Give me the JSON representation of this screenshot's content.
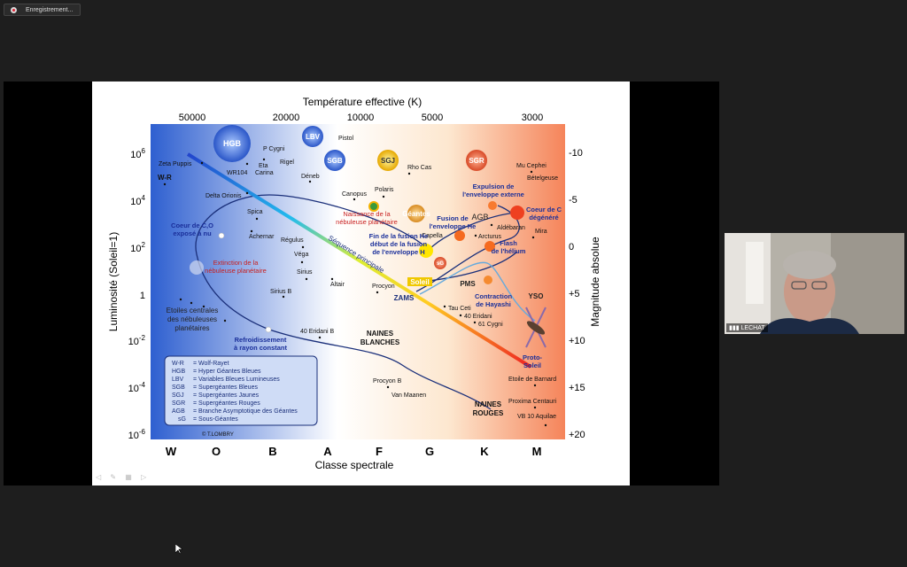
{
  "recording": {
    "label": "Enregistrement..."
  },
  "participant": {
    "name": "LECHAT"
  },
  "chart_data": {
    "type": "scatter",
    "title": "Température effective (K)",
    "top_ticks": [
      "50000",
      "20000",
      "10000",
      "5000",
      "3000"
    ],
    "ylabel": "Luminosité (Soleil=1)",
    "y_ticks": [
      {
        "b": "10",
        "e": "6"
      },
      {
        "b": "10",
        "e": "4"
      },
      {
        "b": "10",
        "e": "2"
      },
      {
        "b": "1",
        "e": ""
      },
      {
        "b": "10",
        "e": "-2"
      },
      {
        "b": "10",
        "e": "-4"
      },
      {
        "b": "10",
        "e": "-6"
      }
    ],
    "ylabel_right": "Magnitude absolue",
    "right_ticks": [
      "-10",
      "-5",
      "0",
      "+5",
      "+10",
      "+15",
      "+20"
    ],
    "xlabel": "Classe spectrale",
    "spectral_classes": [
      "W",
      "O",
      "B",
      "A",
      "F",
      "G",
      "K",
      "M"
    ],
    "main_sequence_label": "Séquence principale",
    "stars": [
      {
        "name": "P Cygni"
      },
      {
        "name": "Pistol"
      },
      {
        "name": "Rigel"
      },
      {
        "name": "Eta"
      },
      {
        "name": "Carina"
      },
      {
        "name": "Zeta Puppis"
      },
      {
        "name": "W-R"
      },
      {
        "name": "WR104"
      },
      {
        "name": "Déneb"
      },
      {
        "name": "Rho Cas"
      },
      {
        "name": "Mu Cephei"
      },
      {
        "name": "Bételgeuse"
      },
      {
        "name": "Delta Orionis"
      },
      {
        "name": "Canopus"
      },
      {
        "name": "Polaris"
      },
      {
        "name": "Spica"
      },
      {
        "name": "Achernar"
      },
      {
        "name": "Régulus"
      },
      {
        "name": "Véga"
      },
      {
        "name": "Sirius"
      },
      {
        "name": "Altair"
      },
      {
        "name": "Procyon"
      },
      {
        "name": "Sirius B"
      },
      {
        "name": "Aldébaran"
      },
      {
        "name": "Arcturus"
      },
      {
        "name": "Mira"
      },
      {
        "name": "Capella"
      },
      {
        "name": "Tau Ceti"
      },
      {
        "name": "40 Eridani"
      },
      {
        "name": "61 Cygni"
      },
      {
        "name": "40 Eridani B"
      },
      {
        "name": "Procyon B"
      },
      {
        "name": "Van Maanen"
      },
      {
        "name": "Etoile de Barnard"
      },
      {
        "name": "Proxima Centauri"
      },
      {
        "name": "VB 10 Aquilae"
      }
    ],
    "bubbles": [
      "HGB",
      "LBV",
      "SGB",
      "SGJ",
      "SGR",
      "Géantes",
      "sG",
      "Soleil",
      "AGB",
      "PMS",
      "YSO",
      "ZAMS"
    ],
    "annotations": {
      "birth_nebula": [
        "Naissance de la",
        "nébuleuse planétaire"
      ],
      "core_co": [
        "Coeur de C,O",
        "exposé à nu"
      ],
      "extinction": [
        "Extinction de la",
        "nébuleuse planétaire"
      ],
      "central_stars": [
        "Etoiles centrales",
        "des nébuleuses",
        "planétaires"
      ],
      "cooling": [
        "Refroidissement",
        "à rayon constant"
      ],
      "white_dwarfs": [
        "NAINES",
        "BLANCHES"
      ],
      "red_dwarfs": [
        "NAINES",
        "ROUGES"
      ],
      "he_fusion": [
        "Fin de la fusion He",
        "début de la fusion",
        "de l'enveloppe H"
      ],
      "fusion_env_he": [
        "Fusion de",
        "l'enveloppe He"
      ],
      "expulsion": [
        "Expulsion de",
        "l'enveloppe externe"
      ],
      "core_c": [
        "Coeur de C",
        "dégénéré"
      ],
      "flash": [
        "Flash",
        "de l'hélium"
      ],
      "hayashi": [
        "Contraction",
        "de Hayashi"
      ],
      "proto_sun": [
        "Proto-",
        "Soleil"
      ]
    },
    "legend": [
      {
        "abbr": "W-R",
        "desc": "= Wolf-Rayet"
      },
      {
        "abbr": "HGB",
        "desc": "= Hyper Géantes Bleues"
      },
      {
        "abbr": "LBV",
        "desc": "= Variables Bleues Lumineuses"
      },
      {
        "abbr": "SGB",
        "desc": "= Supergéantes Bleues"
      },
      {
        "abbr": "SGJ",
        "desc": "= Supergéantes Jaunes"
      },
      {
        "abbr": "SGR",
        "desc": "= Supergéantes Rouges"
      },
      {
        "abbr": "AGB",
        "desc": "= Branche Asymptotique des Géantes"
      },
      {
        "abbr": "sG",
        "desc": "= Sous-Géantes"
      }
    ],
    "credit": "© T.LOMBRY",
    "colors": {
      "hot": "#2e5fd0",
      "mid": "#ffffff",
      "cool": "#f5845a"
    }
  }
}
